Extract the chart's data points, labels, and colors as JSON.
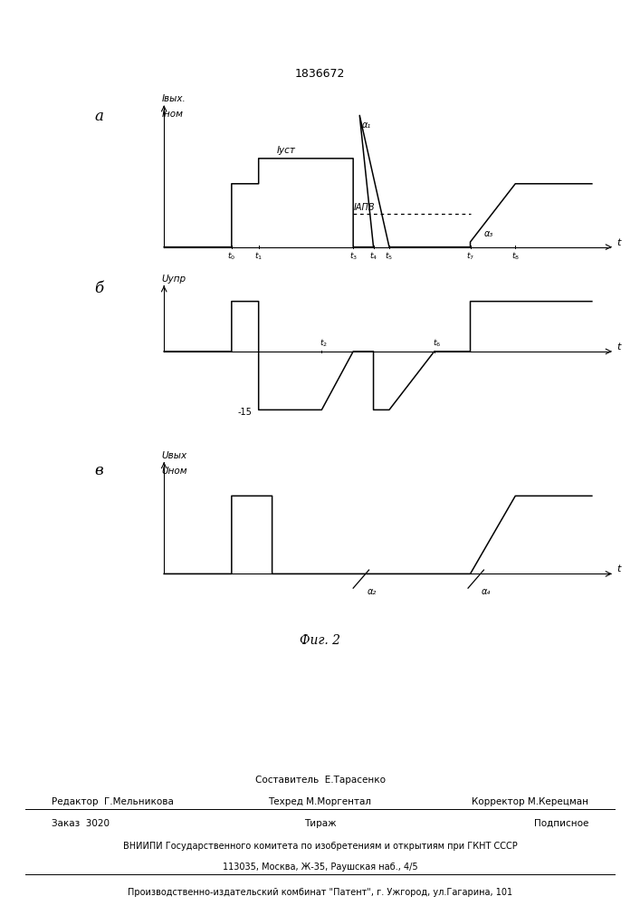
{
  "patent_number": "1836672",
  "fig_label": "Фиг. 2",
  "panel_a": {
    "label": "а",
    "ylabel1": "Iвых.",
    "ylabel2": "Iном",
    "label_Iust": "Iуст",
    "label_IAPV": "IАПВ",
    "label_a1": "α₁",
    "label_a3": "α₃",
    "xlabel": "t"
  },
  "panel_b": {
    "label": "б",
    "ylabel": "Uупр",
    "xlabel": "t",
    "minus15": "-15"
  },
  "panel_c": {
    "label": "в",
    "ylabel1": "Uвых",
    "ylabel2": "Uном",
    "xlabel": "t",
    "label_a2": "α₂",
    "label_a4": "α₄"
  },
  "footer": {
    "line1_center": "Составитель  Е.Тарасенко",
    "line2_left": "Редактор  Г.Мельникова",
    "line2_center": "Техред М.Моргентал",
    "line2_right": "Корректор М.Керецман",
    "line3_left": "Заказ  3020",
    "line3_center": "Тираж",
    "line3_right": "Подписное",
    "line4": "ВНИИПИ Государственного комитета по изобретениям и открытиям при ГКНТ СССР",
    "line5": "113035, Москва, Ж-35, Раушская наб., 4/5",
    "line6": "Производственно-издательский комбинат \"Патент\", г. Ужгород, ул.Гагарина, 101"
  }
}
